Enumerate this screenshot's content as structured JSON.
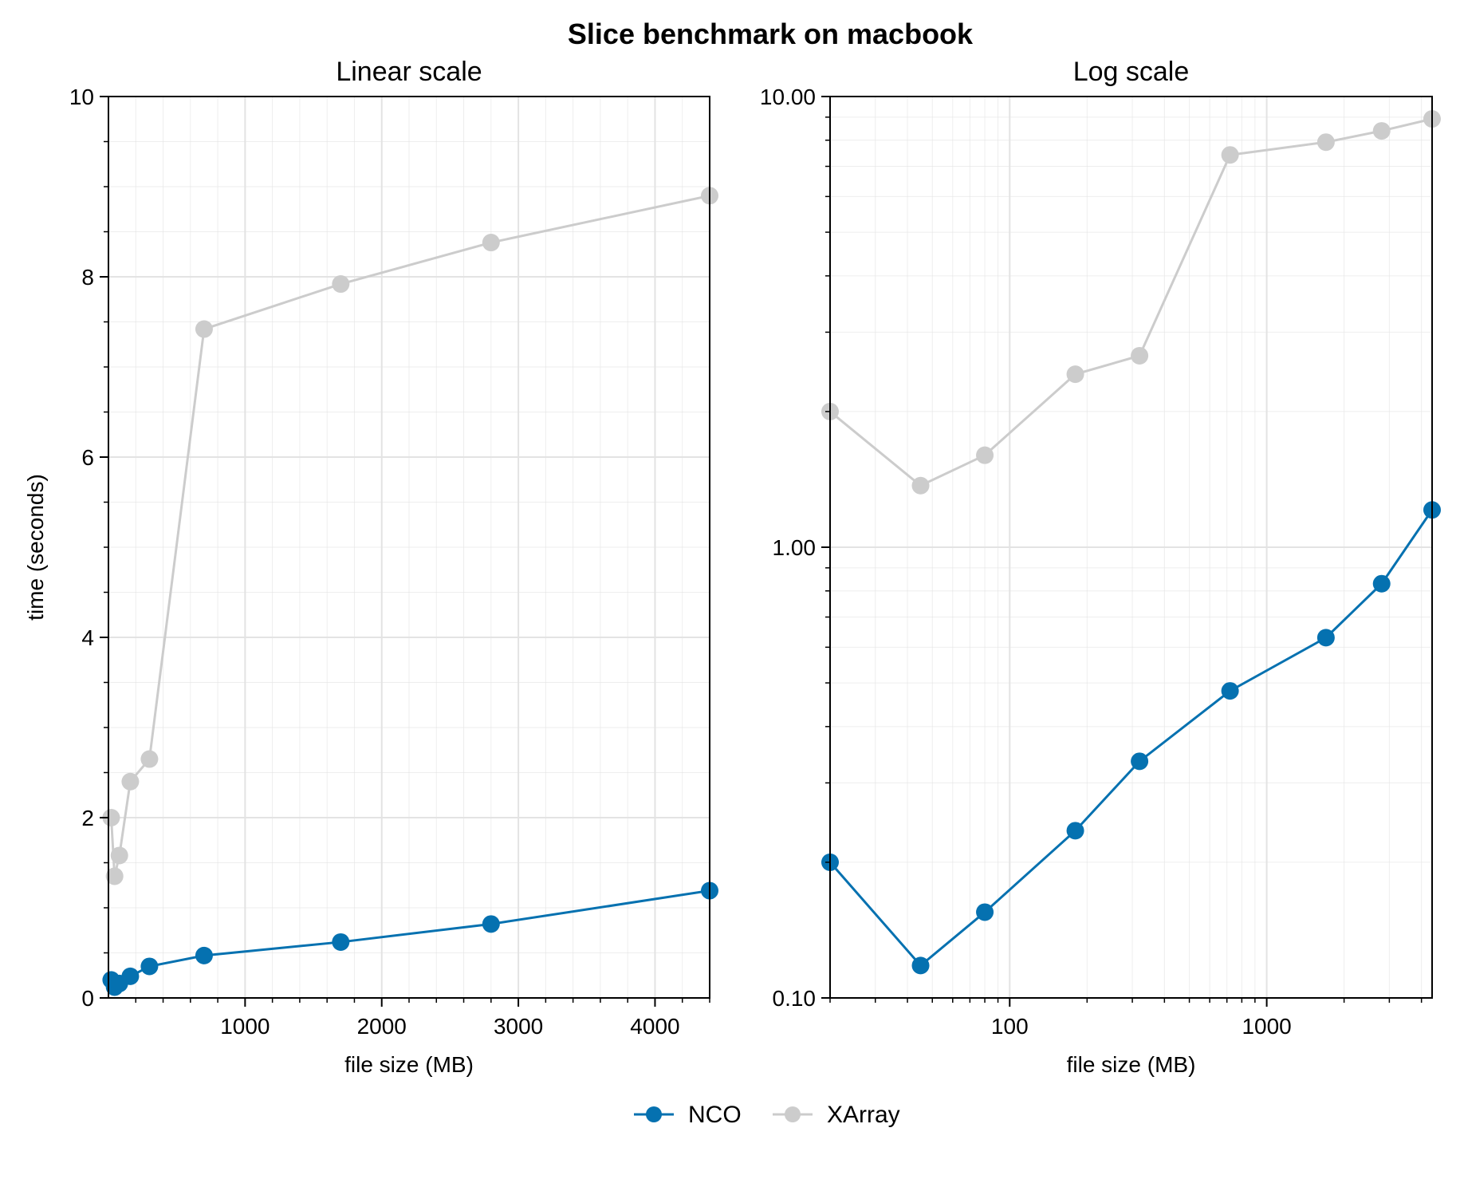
{
  "figure": {
    "suptitle": "Slice benchmark on macbook"
  },
  "colors": {
    "nco": "#0571b0",
    "xarray": "#cccccc",
    "grid": "#e3e3e3",
    "axes": "#000000"
  },
  "chart_data": [
    {
      "type": "line",
      "title": "Linear scale",
      "xlabel": "file size (MB)",
      "ylabel": "time (seconds)",
      "xscale": "linear",
      "yscale": "linear",
      "xlim": [
        0,
        4400
      ],
      "ylim": [
        0,
        10
      ],
      "xticks": [
        1000,
        2000,
        3000,
        4000
      ],
      "xtick_labels": [
        "1000",
        "2000",
        "3000",
        "4000"
      ],
      "yticks": [
        0,
        2,
        4,
        6,
        8,
        10
      ],
      "ytick_labels": [
        "0",
        "2",
        "4",
        "6",
        "8",
        "10"
      ],
      "grid": true,
      "series": [
        {
          "name": "NCO",
          "marker": "o",
          "x": [
            20,
            45,
            80,
            160,
            300,
            700,
            1700,
            2800,
            4400
          ],
          "y": [
            0.2,
            0.12,
            0.16,
            0.24,
            0.35,
            0.47,
            0.62,
            0.82,
            1.19
          ]
        },
        {
          "name": "XArray",
          "marker": "o",
          "x": [
            20,
            45,
            80,
            160,
            300,
            700,
            1700,
            2800,
            4400
          ],
          "y": [
            2.0,
            1.35,
            1.58,
            2.4,
            2.65,
            7.42,
            7.92,
            8.38,
            8.9
          ]
        }
      ]
    },
    {
      "type": "line",
      "title": "Log scale",
      "xlabel": "file size (MB)",
      "ylabel": "",
      "xscale": "log",
      "yscale": "log",
      "xlim": [
        20,
        4400
      ],
      "ylim": [
        0.1,
        10
      ],
      "xticks": [
        100,
        1000
      ],
      "xtick_labels": [
        "100",
        "1000"
      ],
      "yticks": [
        0.1,
        1,
        10
      ],
      "ytick_labels": [
        "0.10",
        "1.00",
        "10.00"
      ],
      "grid": true,
      "series": [
        {
          "name": "NCO",
          "marker": "o",
          "x": [
            20,
            45,
            80,
            180,
            320,
            720,
            1700,
            2800,
            4400
          ],
          "y": [
            0.2,
            0.118,
            0.155,
            0.235,
            0.335,
            0.48,
            0.63,
            0.83,
            1.21
          ]
        },
        {
          "name": "XArray",
          "marker": "o",
          "x": [
            20,
            45,
            80,
            180,
            320,
            720,
            1700,
            2800,
            4400
          ],
          "y": [
            2.0,
            1.37,
            1.6,
            2.42,
            2.66,
            7.42,
            7.92,
            8.39,
            8.92
          ]
        }
      ]
    }
  ],
  "legend": {
    "placement": "bottom-center",
    "entries": [
      "NCO",
      "XArray"
    ]
  }
}
